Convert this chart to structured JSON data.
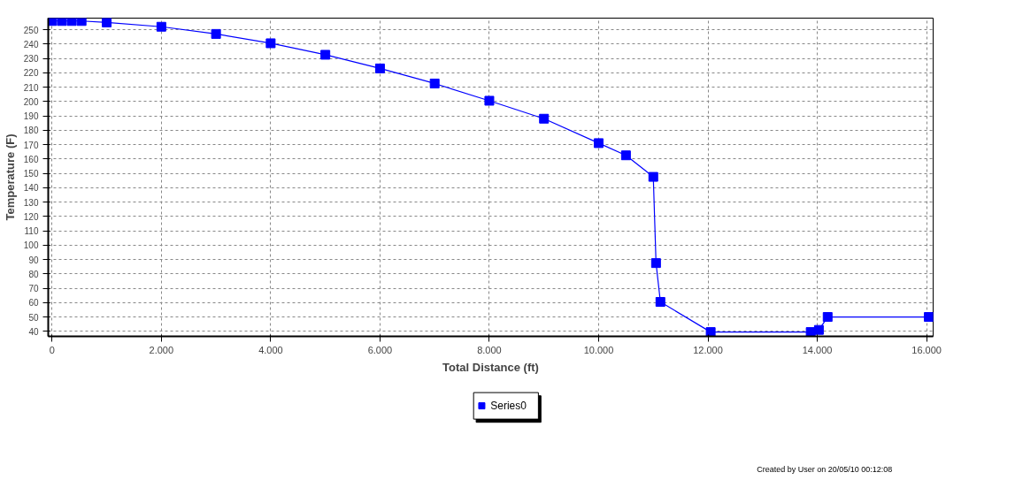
{
  "chart_data": {
    "type": "line",
    "xlabel": "Total Distance (ft)",
    "ylabel": "Temperature (F)",
    "x": [
      0,
      180,
      360,
      540,
      1000,
      2000,
      3000,
      4000,
      5000,
      6000,
      7000,
      8000,
      9000,
      10000,
      10500,
      11000,
      11050,
      11130,
      12050,
      13880,
      14030,
      14190,
      16040
    ],
    "series": [
      {
        "name": "Series0",
        "color": "#0000ff",
        "values": [
          256,
          256,
          256,
          256,
          255,
          252,
          247,
          240.5,
          232.5,
          223,
          212.5,
          200.5,
          188,
          171,
          162.5,
          147.5,
          87.5,
          60.5,
          39.5,
          39.5,
          41,
          50,
          50
        ]
      }
    ],
    "xlim": [
      -70,
      16120
    ],
    "ylim": [
      36.5,
      258
    ],
    "xticks": [
      0,
      {
        "value": 2000,
        "label": "2.000"
      },
      {
        "value": 4000,
        "label": "4.000"
      },
      {
        "value": 6000,
        "label": "6.000"
      },
      {
        "value": 8000,
        "label": "8.000"
      },
      {
        "value": 10000,
        "label": "10.000"
      },
      {
        "value": 12000,
        "label": "12.000"
      },
      {
        "value": 14000,
        "label": "14.000"
      },
      {
        "value": 16000,
        "label": "16.000"
      }
    ],
    "yticks": [
      40,
      50,
      60,
      70,
      80,
      90,
      100,
      110,
      120,
      130,
      140,
      150,
      160,
      170,
      180,
      190,
      200,
      210,
      220,
      230,
      240,
      250
    ],
    "grid": true,
    "legend": "bottom",
    "marker": "square",
    "line_style": "solid",
    "annotations": [
      "Created by User on 20/05/10    00:12:08"
    ]
  }
}
